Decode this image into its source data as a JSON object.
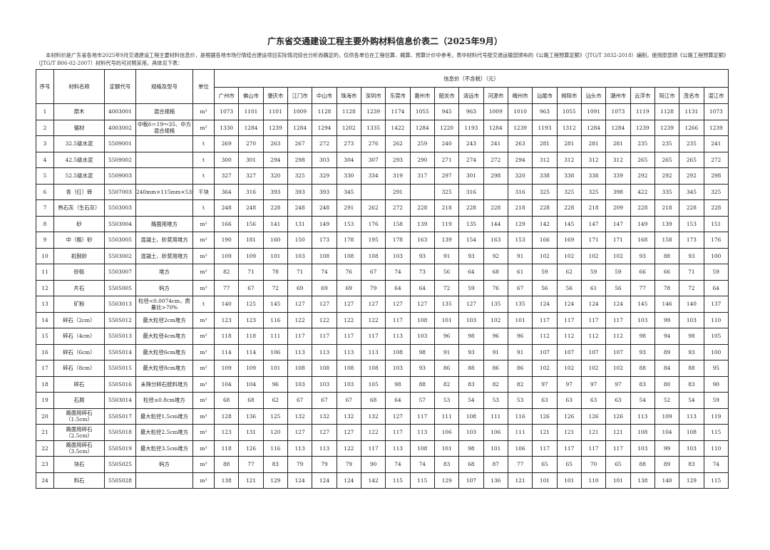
{
  "title": "广东省交通建设工程主要外购材料信息价表二（2025年9月）",
  "intro": "本材料价是广东省各地市2025年9月交通建设工程主要材料信息价，是根据各地市场行情结合建设项目实际情况综合分析而确定的，仅供各单位在工程估算、概算、预算计价中参考。表中材料代号按交通运输部颁布的《公路工程预算定额》（JTG/T 3832-2018）编制，使用原部颁《公路工程预算定额》（JTG/T B06-02-2007）材料代号的可对照采用，具体见下表：",
  "headers": {
    "no": "序号",
    "name": "材料名称",
    "code": "定额代号",
    "spec": "规格及型号",
    "unit": "单位",
    "price_group": "信息价（不含税）（元）"
  },
  "cities": [
    "广州市",
    "佛山市",
    "肇庆市",
    "江门市",
    "中山市",
    "珠海市",
    "深圳市",
    "东莞市",
    "惠州市",
    "韶关市",
    "清远市",
    "河源市",
    "梅州市",
    "汕尾市",
    "揭阳市",
    "汕头市",
    "潮州市",
    "云浮市",
    "阳江市",
    "茂名市",
    "湛江市"
  ],
  "rows": [
    {
      "no": "1",
      "name": "原木",
      "code": "4003001",
      "spec": "混合规格",
      "unit": "m³",
      "prices": [
        "1073",
        "1101",
        "1101",
        "1009",
        "1128",
        "1128",
        "1239",
        "1174",
        "1055",
        "945",
        "963",
        "1009",
        "1010",
        "963",
        "1055",
        "1091",
        "1073",
        "1119",
        "1128",
        "1131",
        "1073"
      ]
    },
    {
      "no": "2",
      "name": "锯材",
      "code": "4003002",
      "spec": "中板δ＝19～35、中方混合规格",
      "unit": "m³",
      "prices": [
        "1330",
        "1284",
        "1239",
        "1284",
        "1294",
        "1202",
        "1335",
        "1422",
        "1284",
        "1220",
        "1193",
        "1284",
        "1239",
        "1193",
        "1312",
        "1284",
        "1284",
        "1239",
        "1239",
        "1266",
        "1239"
      ]
    },
    {
      "no": "3",
      "name": "32.5级水泥",
      "code": "5509001",
      "spec": "",
      "unit": "t",
      "prices": [
        "269",
        "270",
        "263",
        "267",
        "272",
        "273",
        "276",
        "262",
        "259",
        "240",
        "243",
        "241",
        "263",
        "281",
        "281",
        "281",
        "281",
        "235",
        "235",
        "235",
        "241"
      ]
    },
    {
      "no": "4",
      "name": "42.5级水泥",
      "code": "5509002",
      "spec": "",
      "unit": "t",
      "prices": [
        "300",
        "301",
        "294",
        "298",
        "303",
        "304",
        "307",
        "293",
        "290",
        "271",
        "274",
        "272",
        "294",
        "312",
        "312",
        "312",
        "312",
        "265",
        "265",
        "265",
        "272"
      ]
    },
    {
      "no": "5",
      "name": "52.5级水泥",
      "code": "5509003",
      "spec": "",
      "unit": "t",
      "prices": [
        "327",
        "327",
        "320",
        "325",
        "329",
        "330",
        "334",
        "319",
        "317",
        "297",
        "301",
        "298",
        "320",
        "338",
        "338",
        "338",
        "339",
        "292",
        "292",
        "292",
        "298"
      ]
    },
    {
      "no": "6",
      "name": "青（红）砖",
      "code": "5507003",
      "spec": "240mm×115mm×53mm",
      "unit": "千块",
      "prices": [
        "364",
        "316",
        "393",
        "393",
        "393",
        "345",
        "",
        "291",
        "",
        "325",
        "316",
        "",
        "316",
        "325",
        "325",
        "325",
        "398",
        "422",
        "335",
        "345",
        "325"
      ]
    },
    {
      "no": "7",
      "name": "熟石灰（生石灰）",
      "code": "5503003",
      "spec": "",
      "unit": "t",
      "prices": [
        "248",
        "248",
        "228",
        "248",
        "248",
        "291",
        "262",
        "272",
        "228",
        "218",
        "228",
        "228",
        "218",
        "228",
        "228",
        "218",
        "209",
        "228",
        "218",
        "228",
        "228"
      ]
    },
    {
      "no": "8",
      "name": "砂",
      "code": "5503004",
      "spec": "路面用堆方",
      "unit": "m³",
      "prices": [
        "166",
        "156",
        "141",
        "131",
        "149",
        "153",
        "176",
        "158",
        "139",
        "119",
        "135",
        "144",
        "129",
        "142",
        "145",
        "147",
        "147",
        "149",
        "139",
        "153",
        "151"
      ]
    },
    {
      "no": "9",
      "name": "中（粗）砂",
      "code": "5503005",
      "spec": "混凝土、砂浆用堆方",
      "unit": "m³",
      "prices": [
        "190",
        "181",
        "160",
        "150",
        "173",
        "178",
        "195",
        "178",
        "163",
        "139",
        "154",
        "163",
        "153",
        "166",
        "169",
        "171",
        "171",
        "168",
        "158",
        "173",
        "176"
      ]
    },
    {
      "no": "10",
      "name": "机制砂",
      "code": "5503002",
      "spec": "混凝土、砂浆用堆方",
      "unit": "m³",
      "prices": [
        "109",
        "109",
        "101",
        "103",
        "108",
        "108",
        "108",
        "103",
        "93",
        "91",
        "93",
        "92",
        "91",
        "102",
        "102",
        "102",
        "102",
        "93",
        "88",
        "93",
        "100"
      ]
    },
    {
      "no": "11",
      "name": "砂砾",
      "code": "5503007",
      "spec": "堆方",
      "unit": "m³",
      "prices": [
        "82",
        "71",
        "78",
        "71",
        "74",
        "76",
        "67",
        "74",
        "73",
        "56",
        "64",
        "68",
        "61",
        "59",
        "62",
        "59",
        "59",
        "66",
        "66",
        "71",
        "59"
      ]
    },
    {
      "no": "12",
      "name": "片石",
      "code": "5505005",
      "spec": "码方",
      "unit": "m³",
      "prices": [
        "77",
        "67",
        "72",
        "69",
        "69",
        "69",
        "79",
        "64",
        "64",
        "72",
        "59",
        "76",
        "67",
        "56",
        "56",
        "61",
        "56",
        "77",
        "78",
        "72",
        "64"
      ]
    },
    {
      "no": "13",
      "name": "矿粉",
      "code": "5503013",
      "spec": "粒径<0.0074cm，质量比>70%",
      "unit": "t",
      "prices": [
        "140",
        "125",
        "145",
        "127",
        "127",
        "127",
        "127",
        "127",
        "127",
        "135",
        "127",
        "135",
        "135",
        "124",
        "124",
        "124",
        "124",
        "145",
        "146",
        "140",
        "137"
      ]
    },
    {
      "no": "14",
      "name": "碎石（2cm）",
      "code": "5505012",
      "spec": "最大粒径2cm堆方",
      "unit": "m³",
      "prices": [
        "123",
        "123",
        "116",
        "122",
        "122",
        "122",
        "122",
        "117",
        "108",
        "101",
        "103",
        "102",
        "101",
        "117",
        "117",
        "117",
        "117",
        "103",
        "99",
        "103",
        "110"
      ]
    },
    {
      "no": "15",
      "name": "碎石（4cm）",
      "code": "5505013",
      "spec": "最大粒径4cm堆方",
      "unit": "m³",
      "prices": [
        "118",
        "118",
        "111",
        "117",
        "117",
        "117",
        "117",
        "113",
        "103",
        "96",
        "98",
        "96",
        "96",
        "112",
        "112",
        "112",
        "112",
        "98",
        "94",
        "98",
        "105"
      ]
    },
    {
      "no": "16",
      "name": "碎石（6cm）",
      "code": "5505014",
      "spec": "最大粒径6cm堆方",
      "unit": "m³",
      "prices": [
        "114",
        "114",
        "106",
        "113",
        "113",
        "113",
        "113",
        "108",
        "98",
        "91",
        "93",
        "91",
        "91",
        "107",
        "107",
        "107",
        "107",
        "93",
        "89",
        "93",
        "100"
      ]
    },
    {
      "no": "17",
      "name": "碎石（8cm）",
      "code": "5505015",
      "spec": "最大粒径8cm堆方",
      "unit": "m³",
      "prices": [
        "109",
        "109",
        "101",
        "108",
        "108",
        "108",
        "108",
        "103",
        "93",
        "86",
        "88",
        "86",
        "86",
        "102",
        "102",
        "102",
        "102",
        "88",
        "84",
        "88",
        "95"
      ]
    },
    {
      "no": "18",
      "name": "碎石",
      "code": "5505016",
      "spec": "未筛分碎石统料堆方",
      "unit": "m³",
      "prices": [
        "104",
        "104",
        "96",
        "103",
        "103",
        "103",
        "105",
        "98",
        "88",
        "82",
        "83",
        "82",
        "82",
        "97",
        "97",
        "97",
        "97",
        "83",
        "80",
        "83",
        "90"
      ]
    },
    {
      "no": "19",
      "name": "石屑",
      "code": "5503014",
      "spec": "粒径≤0.8cm堆方",
      "unit": "m³",
      "prices": [
        "68",
        "68",
        "62",
        "67",
        "67",
        "67",
        "68",
        "64",
        "57",
        "53",
        "54",
        "53",
        "53",
        "63",
        "63",
        "63",
        "63",
        "54",
        "52",
        "54",
        "59"
      ]
    },
    {
      "no": "20",
      "name": "路面用碎石（1.5cm）",
      "code": "5505017",
      "spec": "最大粒径1.5cm堆方",
      "unit": "m³",
      "prices": [
        "128",
        "136",
        "125",
        "132",
        "132",
        "132",
        "132",
        "127",
        "117",
        "111",
        "108",
        "111",
        "116",
        "126",
        "126",
        "126",
        "126",
        "113",
        "109",
        "113",
        "119"
      ]
    },
    {
      "no": "21",
      "name": "路面用碎石（2.5cm）",
      "code": "5505018",
      "spec": "最大粒径2.5cm堆方",
      "unit": "m³",
      "prices": [
        "123",
        "131",
        "120",
        "127",
        "127",
        "127",
        "122",
        "117",
        "113",
        "106",
        "103",
        "106",
        "111",
        "121",
        "121",
        "121",
        "121",
        "108",
        "104",
        "108",
        "115"
      ]
    },
    {
      "no": "22",
      "name": "路面用碎石（3.5cm）",
      "code": "5505019",
      "spec": "最大粒径3.5cm堆方",
      "unit": "m³",
      "prices": [
        "118",
        "126",
        "116",
        "113",
        "113",
        "122",
        "117",
        "113",
        "108",
        "101",
        "98",
        "101",
        "106",
        "117",
        "117",
        "117",
        "117",
        "103",
        "99",
        "103",
        "110"
      ]
    },
    {
      "no": "23",
      "name": "块石",
      "code": "5505025",
      "spec": "码方",
      "unit": "m³",
      "prices": [
        "88",
        "77",
        "83",
        "79",
        "79",
        "79",
        "90",
        "74",
        "74",
        "83",
        "68",
        "87",
        "77",
        "65",
        "65",
        "70",
        "65",
        "88",
        "89",
        "83",
        "74"
      ]
    },
    {
      "no": "24",
      "name": "料石",
      "code": "5505028",
      "spec": "",
      "unit": "m³",
      "prices": [
        "138",
        "121",
        "129",
        "124",
        "124",
        "124",
        "142",
        "115",
        "115",
        "129",
        "107",
        "136",
        "121",
        "101",
        "101",
        "110",
        "101",
        "138",
        "140",
        "129",
        "115"
      ]
    }
  ]
}
